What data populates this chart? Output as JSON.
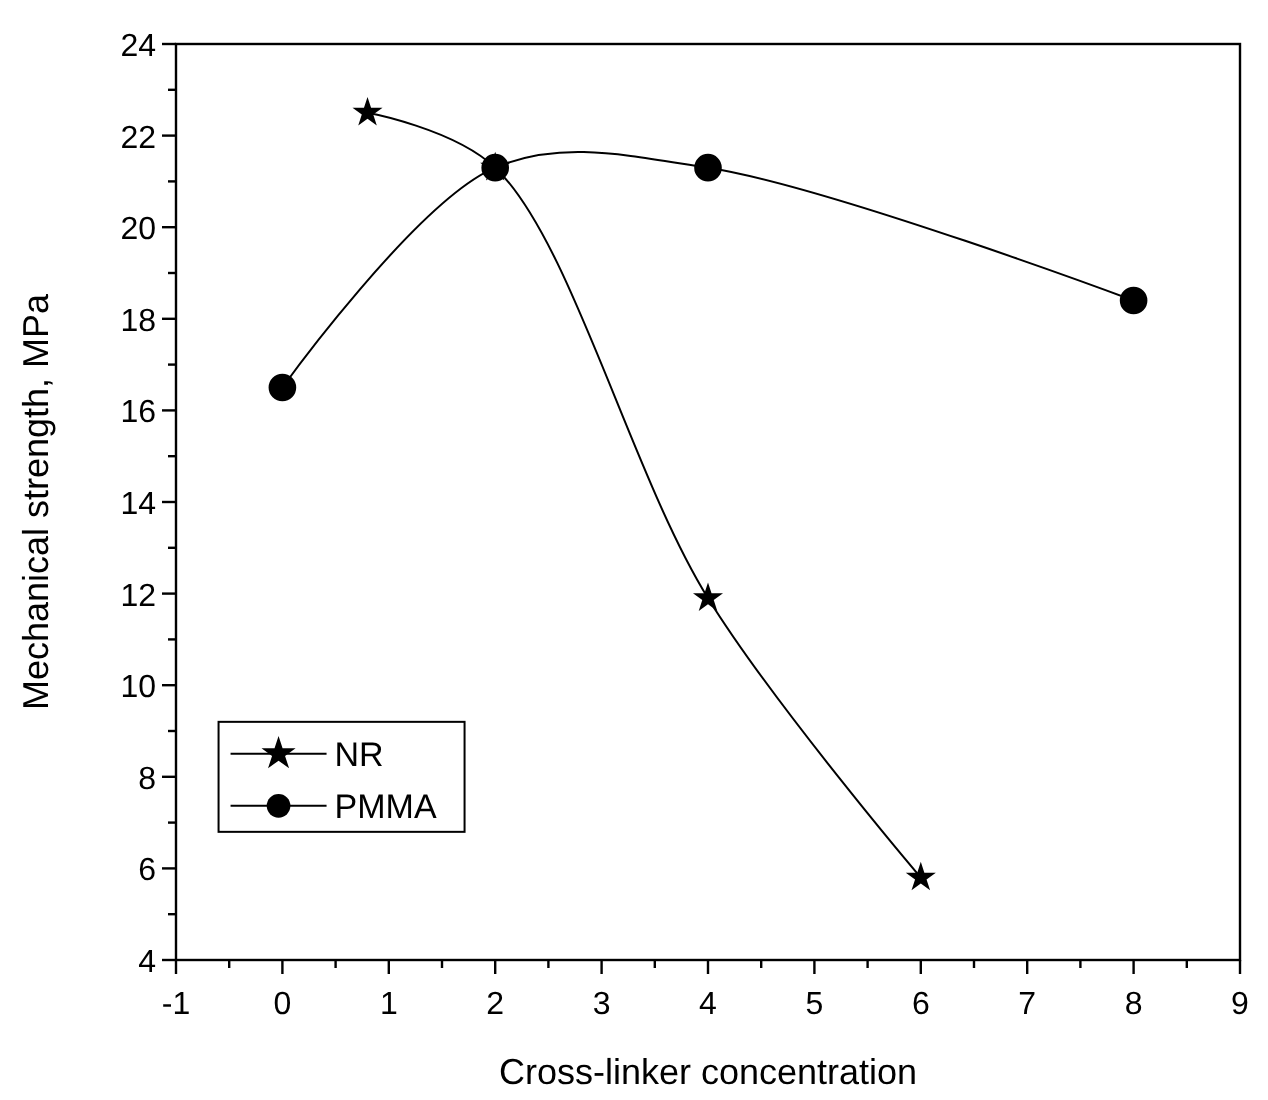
{
  "chart_data": {
    "type": "line",
    "xlabel": "Cross-linker concentration",
    "ylabel": "Mechanical strength, MPa",
    "xlim": [
      -1,
      9
    ],
    "xticks": [
      -1,
      {
        "value": -0.5,
        "label": null
      },
      0,
      {
        "value": 0.5,
        "label": null
      },
      1,
      {
        "value": 1.5,
        "label": null
      },
      2,
      {
        "value": 2.5,
        "label": null
      },
      3,
      {
        "value": 3.5,
        "label": null
      },
      4,
      {
        "value": 4.5,
        "label": null
      },
      5,
      {
        "value": 5.5,
        "label": null
      },
      6,
      {
        "value": 6.5,
        "label": null
      },
      7,
      {
        "value": 7.5,
        "label": null
      },
      8,
      {
        "value": 8.5,
        "label": null
      },
      9
    ],
    "ylim": [
      4,
      24
    ],
    "yticks": [
      4,
      {
        "value": 5,
        "label": null
      },
      6,
      {
        "value": 7,
        "label": null
      },
      8,
      {
        "value": 9,
        "label": null
      },
      10,
      {
        "value": 11,
        "label": null
      },
      12,
      {
        "value": 13,
        "label": null
      },
      14,
      {
        "value": 15,
        "label": null
      },
      16,
      {
        "value": 17,
        "label": null
      },
      18,
      {
        "value": 19,
        "label": null
      },
      20,
      {
        "value": 21,
        "label": null
      },
      22,
      {
        "value": 23,
        "label": null
      },
      24
    ],
    "grid": false,
    "legend": "bottom left",
    "line_style": "solid",
    "series": [
      {
        "name": "NR",
        "color": "#000000",
        "marker": "star",
        "x": [
          0.8,
          2,
          4,
          6
        ],
        "values": [
          22.5,
          21.3,
          11.9,
          5.8
        ]
      },
      {
        "name": "PMMA",
        "color": "#000000",
        "marker": "circle",
        "x": [
          0,
          2,
          4,
          8
        ],
        "values": [
          16.5,
          21.3,
          21.3,
          18.4
        ]
      }
    ]
  }
}
